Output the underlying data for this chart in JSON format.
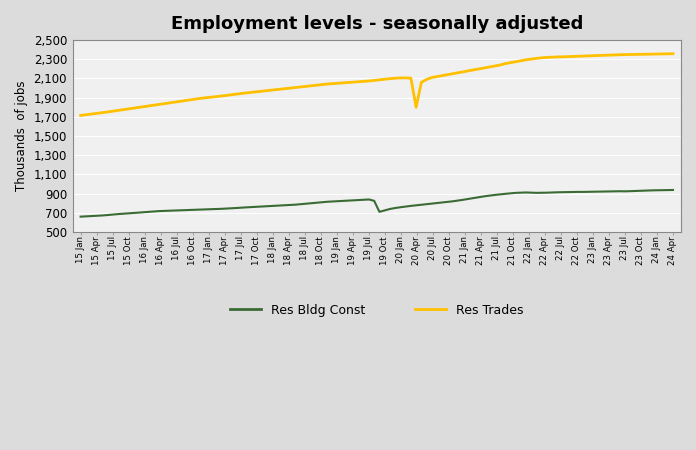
{
  "title": "Employment levels - seasonally adjusted",
  "ylabel": "Thousands  of jobs",
  "ylim": [
    500,
    2500
  ],
  "yticks": [
    500,
    700,
    900,
    1100,
    1300,
    1500,
    1700,
    1900,
    2100,
    2300,
    2500
  ],
  "background_color": "#dcdcdc",
  "plot_bg_color": "#f0f0f0",
  "grid_color": "#ffffff",
  "legend": [
    {
      "label": "Res Bldg Const",
      "color": "#3a6b35"
    },
    {
      "label": "Res Trades",
      "color": "#ffc000"
    }
  ],
  "x_labels_quarterly": [
    "15 Jan",
    "15 Apr",
    "15 Jul",
    "15 Oct",
    "16 Jan",
    "16 Apr",
    "16 Jul",
    "16 Oct",
    "17 Jan",
    "17 Apr",
    "17 Jul",
    "17 Oct",
    "18 Jan",
    "18 Apr",
    "18 Jul",
    "18 Oct",
    "19 Jan",
    "19 Apr",
    "19 Jul",
    "19 Oct",
    "20 Jan",
    "20 Apr",
    "20 Jul",
    "20 Oct",
    "21 Jan",
    "21 Apr",
    "21 Jul",
    "21 Oct",
    "22 Jan",
    "22 Apr",
    "22 Jul",
    "22 Oct",
    "23 Jan",
    "23 Apr",
    "23 Jul",
    "23 Oct",
    "24 Jan",
    "24 Apr"
  ],
  "res_bldg_const": [
    660,
    663,
    666,
    669,
    672,
    676,
    681,
    686,
    690,
    694,
    698,
    702,
    706,
    710,
    714,
    718,
    720,
    722,
    724,
    726,
    728,
    730,
    732,
    734,
    736,
    738,
    740,
    742,
    745,
    748,
    751,
    755,
    758,
    761,
    764,
    767,
    770,
    773,
    776,
    779,
    782,
    785,
    790,
    795,
    800,
    805,
    810,
    815,
    818,
    821,
    824,
    827,
    830,
    833,
    836,
    839,
    825,
    710,
    725,
    740,
    750,
    758,
    765,
    772,
    778,
    784,
    790,
    796,
    802,
    808,
    814,
    820,
    828,
    836,
    845,
    854,
    863,
    872,
    879,
    886,
    892,
    898,
    903,
    908,
    910,
    912,
    910,
    908,
    909,
    910,
    912,
    914,
    915,
    916,
    917,
    918,
    918,
    919,
    920,
    921,
    922,
    923,
    924,
    925,
    924,
    926,
    928,
    930,
    932,
    934,
    935,
    936,
    937,
    938
  ],
  "res_trades": [
    1715,
    1722,
    1729,
    1736,
    1743,
    1750,
    1758,
    1766,
    1774,
    1782,
    1790,
    1798,
    1806,
    1814,
    1822,
    1830,
    1838,
    1846,
    1854,
    1862,
    1870,
    1878,
    1886,
    1894,
    1900,
    1906,
    1912,
    1918,
    1925,
    1932,
    1939,
    1946,
    1952,
    1958,
    1964,
    1970,
    1976,
    1982,
    1988,
    1994,
    2000,
    2006,
    2012,
    2018,
    2024,
    2030,
    2036,
    2042,
    2046,
    2050,
    2054,
    2058,
    2062,
    2066,
    2070,
    2074,
    2080,
    2086,
    2092,
    2098,
    2103,
    2106,
    2106,
    2104,
    1800,
    2060,
    2090,
    2110,
    2120,
    2130,
    2140,
    2150,
    2160,
    2170,
    2180,
    2190,
    2200,
    2210,
    2220,
    2230,
    2240,
    2255,
    2265,
    2275,
    2285,
    2295,
    2303,
    2310,
    2316,
    2320,
    2322,
    2325,
    2326,
    2328,
    2330,
    2332,
    2334,
    2336,
    2338,
    2340,
    2342,
    2344,
    2346,
    2348,
    2349,
    2350,
    2351,
    2352,
    2353,
    2354,
    2355,
    2356,
    2357,
    2358
  ]
}
